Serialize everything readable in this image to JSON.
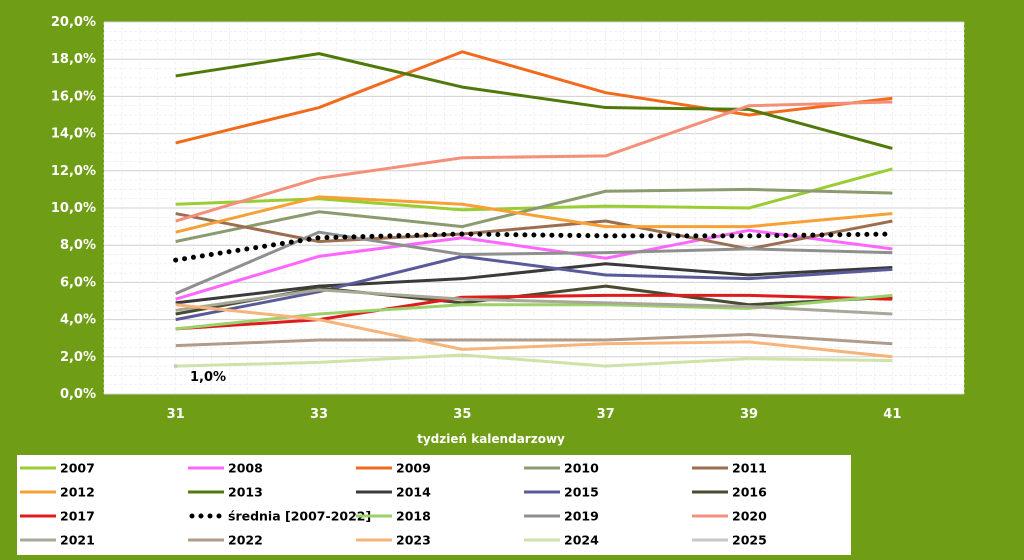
{
  "chart_data": {
    "type": "line",
    "xlabel": "tydzień kalendarzowy",
    "ylabel": "",
    "x": [
      31,
      33,
      35,
      37,
      39,
      41
    ],
    "x_ticks": [
      "31",
      "33",
      "35",
      "37",
      "39",
      "41"
    ],
    "y_ticks": [
      "0,0%",
      "2,0%",
      "4,0%",
      "6,0%",
      "8,0%",
      "10,0%",
      "12,0%",
      "14,0%",
      "16,0%",
      "18,0%",
      "20,0%"
    ],
    "ylim": [
      0,
      20
    ],
    "grid": true,
    "legend_position": "bottom",
    "annotation": "1,0%",
    "series": [
      {
        "name": "2007",
        "color": "#9acd32",
        "values": [
          10.2,
          10.5,
          9.9,
          10.1,
          10.0,
          12.1
        ]
      },
      {
        "name": "2008",
        "color": "#ff66ff",
        "values": [
          5.1,
          7.4,
          8.4,
          7.3,
          8.8,
          7.8
        ]
      },
      {
        "name": "2009",
        "color": "#f26b1d",
        "values": [
          13.5,
          15.4,
          18.4,
          16.2,
          15.0,
          15.9
        ]
      },
      {
        "name": "2010",
        "color": "#8c9b6e",
        "values": [
          8.2,
          9.8,
          9.0,
          10.9,
          11.0,
          10.8
        ]
      },
      {
        "name": "2011",
        "color": "#9b6e50",
        "values": [
          9.7,
          8.2,
          8.6,
          9.3,
          7.8,
          9.3
        ]
      },
      {
        "name": "2012",
        "color": "#f7a035",
        "values": [
          8.7,
          10.6,
          10.2,
          9.0,
          9.0,
          9.7
        ]
      },
      {
        "name": "2013",
        "color": "#4f7a0b",
        "values": [
          17.1,
          18.3,
          16.5,
          15.4,
          15.3,
          13.2
        ]
      },
      {
        "name": "2014",
        "color": "#3a3a3a",
        "values": [
          4.9,
          5.8,
          6.2,
          7.0,
          6.4,
          6.8
        ]
      },
      {
        "name": "2015",
        "color": "#5a5a9a",
        "values": [
          4.0,
          5.5,
          7.4,
          6.4,
          6.2,
          6.7
        ]
      },
      {
        "name": "2016",
        "color": "#4a4a30",
        "values": [
          4.3,
          5.7,
          4.9,
          5.8,
          4.8,
          5.2
        ]
      },
      {
        "name": "2017",
        "color": "#e01b1b",
        "values": [
          3.5,
          4.0,
          5.2,
          5.3,
          5.3,
          5.1
        ]
      },
      {
        "name": "średnia [2007-2022]",
        "color": "#000000",
        "dotted": true,
        "values": [
          7.2,
          8.4,
          8.6,
          8.5,
          8.5,
          8.6
        ]
      },
      {
        "name": "2018",
        "color": "#9bd16b",
        "values": [
          3.5,
          4.3,
          4.8,
          4.8,
          4.6,
          5.3
        ]
      },
      {
        "name": "2019",
        "color": "#8f8f8f",
        "values": [
          5.4,
          8.7,
          7.5,
          7.6,
          7.8,
          7.6
        ]
      },
      {
        "name": "2020",
        "color": "#f4907a",
        "values": [
          9.3,
          11.6,
          12.7,
          12.8,
          15.5,
          15.7
        ]
      },
      {
        "name": "2021",
        "color": "#a8a898",
        "values": [
          4.5,
          5.6,
          5.1,
          4.9,
          4.7,
          4.3
        ]
      },
      {
        "name": "2022",
        "color": "#b09c8c",
        "values": [
          2.6,
          2.9,
          2.9,
          2.9,
          3.2,
          2.7
        ]
      },
      {
        "name": "2023",
        "color": "#f7b47a",
        "values": [
          4.8,
          4.0,
          2.4,
          2.7,
          2.8,
          2.0
        ]
      },
      {
        "name": "2024",
        "color": "#cde3a8",
        "values": [
          1.5,
          1.7,
          2.1,
          1.5,
          1.9,
          1.8
        ]
      },
      {
        "name": "2025",
        "color": "#c8c8c8",
        "values": [
          1.5,
          null,
          null,
          null,
          null,
          null
        ]
      }
    ]
  }
}
